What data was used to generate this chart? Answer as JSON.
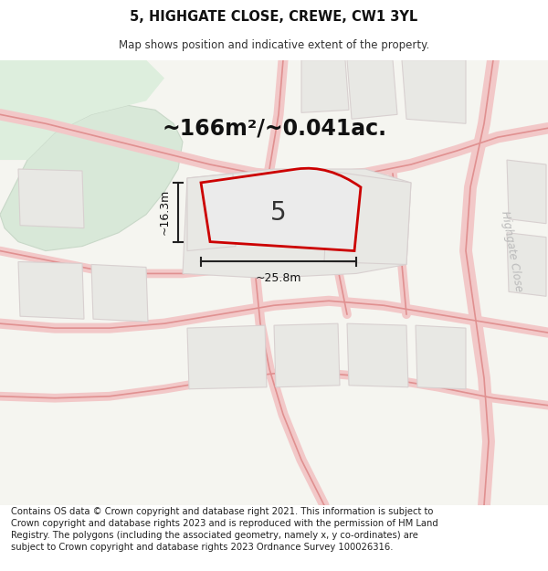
{
  "title_line1": "5, HIGHGATE CLOSE, CREWE, CW1 3YL",
  "title_line2": "Map shows position and indicative extent of the property.",
  "footer_text": "Contains OS data © Crown copyright and database right 2021. This information is subject to Crown copyright and database rights 2023 and is reproduced with the permission of HM Land Registry. The polygons (including the associated geometry, namely x, y co-ordinates) are subject to Crown copyright and database rights 2023 Ordnance Survey 100026316.",
  "area_label": "~166m²/~0.041ac.",
  "width_label": "~25.8m",
  "height_label": "~16.3m",
  "plot_number": "5",
  "map_bg": "#f5f5f0",
  "road_fill": "#f2c8c8",
  "road_edge": "#e09090",
  "parcel_fill": "#e8e8e4",
  "parcel_edge": "#d8d0d0",
  "plot_fill": "#eaeae6",
  "plot_outline": "#cc0000",
  "green_color": "#d8e8d8",
  "green_color2": "#c8dcc8",
  "street_label": "Highgate Close",
  "street_label_color": "#bbbbbb",
  "title_fontsize": 10.5,
  "subtitle_fontsize": 8.5,
  "footer_fontsize": 7.2,
  "area_label_fontsize": 17,
  "plot_number_fontsize": 20,
  "measurement_fontsize": 9
}
